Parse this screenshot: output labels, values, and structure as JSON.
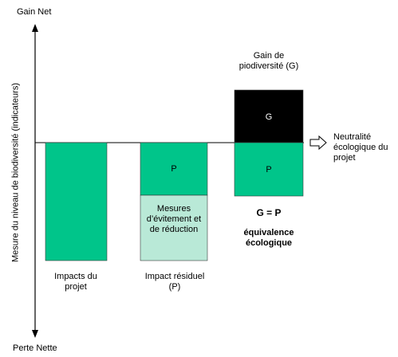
{
  "axis": {
    "top_label": "Gain Net",
    "bottom_label": "Perte Nette",
    "vertical_label": "Mesure du niveau de biodiversité (indicateurs)"
  },
  "colors": {
    "impact": "#00c58a",
    "mitigation": "#b9e9d7",
    "gain": "#000000",
    "line": "#000000",
    "box_stroke": "#3a3a3a"
  },
  "bars": {
    "impacts": {
      "caption": "Impacts du projet"
    },
    "residual": {
      "caption": "Impact résiduel (P)",
      "p_label": "P",
      "mitigation_label": "Mesures d’évitement et de réduction"
    },
    "equivalence": {
      "gain_title": "Gain de piodiversité (G)",
      "g_label": "G",
      "p_label": "P",
      "equation": "G = P",
      "caption": "équivalence écologique"
    }
  },
  "neutral": {
    "label": "Neutralité écologique du projet"
  }
}
